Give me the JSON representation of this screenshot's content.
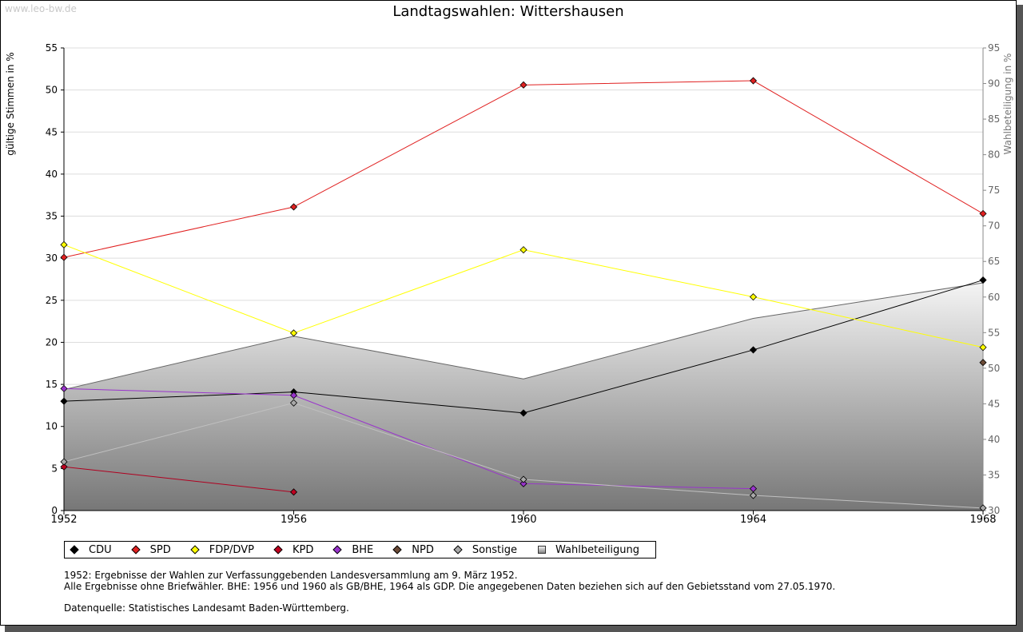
{
  "watermark": "www.leo-bw.de",
  "chart_data": {
    "type": "line",
    "title": "Landtagswahlen: Wittershausen",
    "ylabel": "gültige Stimmen in %",
    "y2label": "Wahlbeteiligung in %",
    "x": [
      "1952",
      "1956",
      "1960",
      "1964",
      "1968"
    ],
    "ylim": [
      0,
      55
    ],
    "y2lim": [
      30,
      95
    ],
    "yticks": [
      "0",
      "5",
      "10",
      "15",
      "20",
      "25",
      "30",
      "35",
      "40",
      "45",
      "50",
      "55"
    ],
    "y2ticks": [
      "30",
      "35",
      "40",
      "45",
      "50",
      "55",
      "60",
      "65",
      "70",
      "75",
      "80",
      "85",
      "90",
      "95"
    ],
    "grid": true,
    "legend": "bottom",
    "series": [
      {
        "name": "CDU",
        "color": "#000000",
        "marker": "#000000",
        "values": [
          13.0,
          14.1,
          11.6,
          19.1,
          27.4
        ]
      },
      {
        "name": "SPD",
        "color": "#e02020",
        "marker": "#e02020",
        "values": [
          30.1,
          36.1,
          50.6,
          51.1,
          35.3
        ]
      },
      {
        "name": "FDP/DVP",
        "color": "#ffff00",
        "marker": "#ffff00",
        "values": [
          31.6,
          21.1,
          31.0,
          25.4,
          19.4
        ]
      },
      {
        "name": "KPD",
        "color": "#b00020",
        "marker": "#c00020",
        "values": [
          5.2,
          2.2,
          null,
          null,
          null
        ]
      },
      {
        "name": "BHE",
        "color": "#9933cc",
        "marker": "#9933cc",
        "values": [
          14.5,
          13.7,
          3.2,
          2.6,
          null
        ]
      },
      {
        "name": "NPD",
        "color": "#6b4a36",
        "marker": "#6b4a36",
        "values": [
          null,
          null,
          null,
          null,
          17.6
        ]
      },
      {
        "name": "Sonstige",
        "color": "#c0c0c0",
        "marker": "#a8a8a8",
        "values": [
          5.8,
          12.8,
          3.7,
          1.8,
          0.3
        ]
      }
    ],
    "area": {
      "name": "Wahlbeteiligung",
      "axis": "right",
      "values": [
        47.0,
        54.5,
        48.5,
        57.0,
        62.0
      ]
    }
  },
  "notes": {
    "line1": "1952: Ergebnisse der Wahlen zur Verfassunggebenden Landesversammlung am 9. März 1952.",
    "line2": "Alle Ergebnisse ohne Briefwähler. BHE: 1956 und 1960 als GB/BHE, 1964 als GDP. Die angegebenen Daten beziehen sich auf den Gebietsstand vom 27.05.1970.",
    "line3": "Datenquelle: Statistisches Landesamt Baden-Württemberg."
  }
}
